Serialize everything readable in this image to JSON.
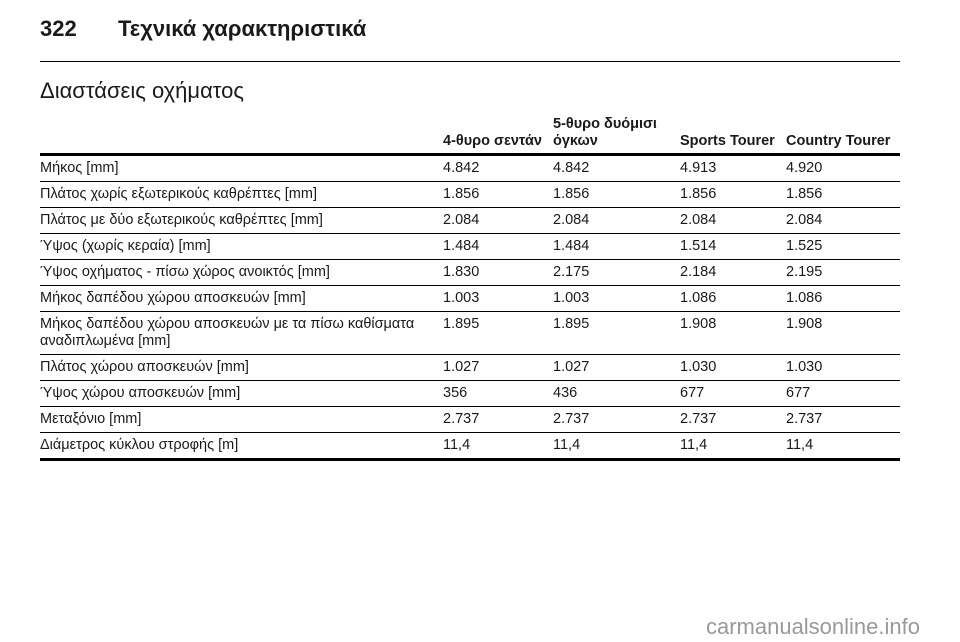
{
  "header": {
    "page_number": "322",
    "title": "Τεχνικά χαρακτηριστικά"
  },
  "section_title": "Διαστάσεις οχήματος",
  "table": {
    "columns": [
      "4-θυρο σεντάν",
      "5-θυρο δυόμισι όγκων",
      "Sports Tourer",
      "Country Tourer"
    ],
    "rows": [
      [
        "Μήκος [mm]",
        "4.842",
        "4.842",
        "4.913",
        "4.920"
      ],
      [
        "Πλάτος χωρίς εξωτερικούς καθρέπτες [mm]",
        "1.856",
        "1.856",
        "1.856",
        "1.856"
      ],
      [
        "Πλάτος με δύο εξωτερικούς καθρέπτες [mm]",
        "2.084",
        "2.084",
        "2.084",
        "2.084"
      ],
      [
        "Ύψος (χωρίς κεραία) [mm]",
        "1.484",
        "1.484",
        "1.514",
        "1.525"
      ],
      [
        "Ύψος οχήματος - πίσω χώρος ανοικτός [mm]",
        "1.830",
        "2.175",
        "2.184",
        "2.195"
      ],
      [
        "Μήκος δαπέδου χώρου αποσκευών [mm]",
        "1.003",
        "1.003",
        "1.086",
        "1.086"
      ],
      [
        "Μήκος δαπέδου χώρου αποσκευών με τα πίσω καθίσματα αναδιπλωμένα [mm]",
        "1.895",
        "1.895",
        "1.908",
        "1.908"
      ],
      [
        "Πλάτος χώρου αποσκευών [mm]",
        "1.027",
        "1.027",
        "1.030",
        "1.030"
      ],
      [
        "Ύψος χώρου αποσκευών [mm]",
        "356",
        "436",
        "677",
        "677"
      ],
      [
        "Μεταξόνιο [mm]",
        "2.737",
        "2.737",
        "2.737",
        "2.737"
      ],
      [
        "Διάμετρος κύκλου στροφής [m]",
        "11,4",
        "11,4",
        "11,4",
        "11,4"
      ]
    ]
  },
  "watermark": "carmanualsonline.info"
}
